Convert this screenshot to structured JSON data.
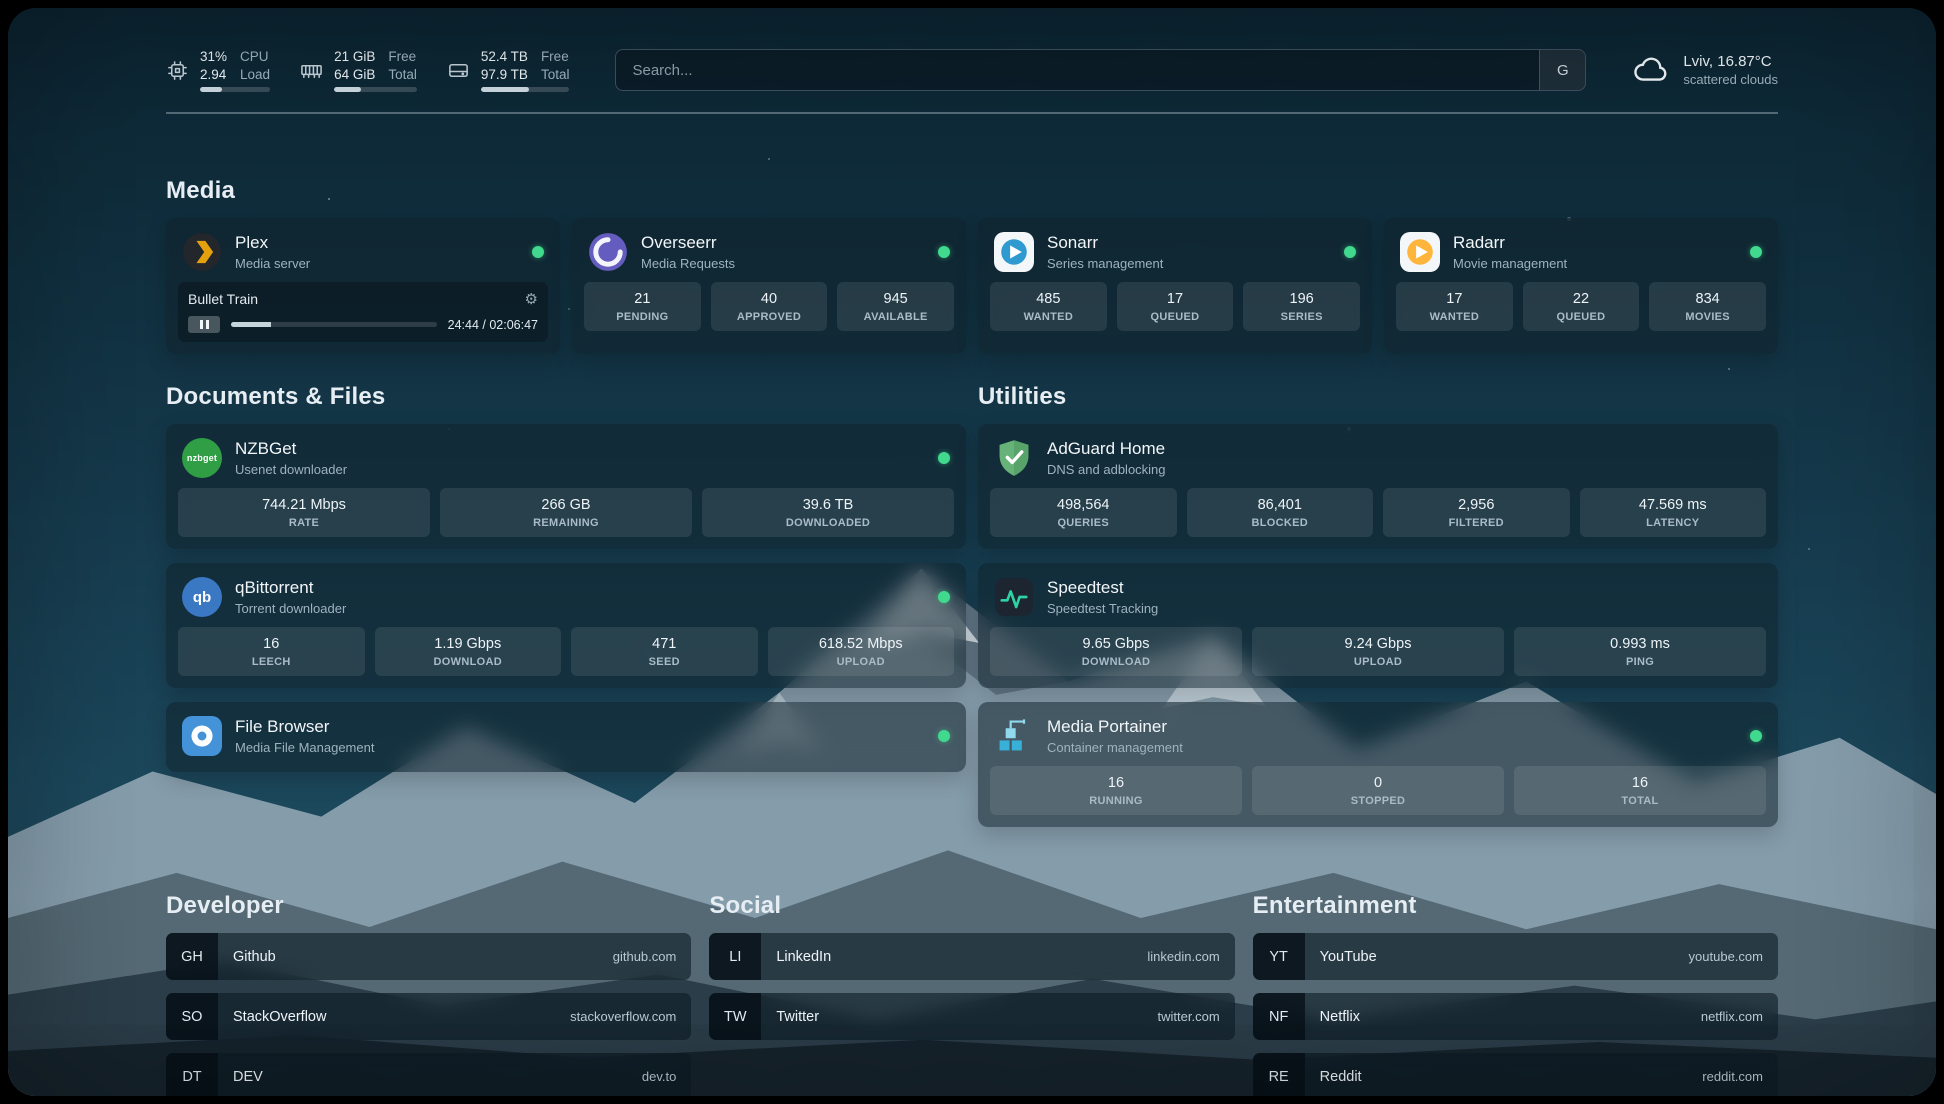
{
  "topbar": {
    "cpu": {
      "value1": "31%",
      "label1": "CPU",
      "value2": "2.94",
      "label2": "Load",
      "percent": 31
    },
    "memory": {
      "value1": "21 GiB",
      "label1": "Free",
      "value2": "64 GiB",
      "label2": "Total",
      "percent": 33
    },
    "disk": {
      "value1": "52.4 TB",
      "label1": "Free",
      "value2": "97.9 TB",
      "label2": "Total",
      "percent": 54
    },
    "search": {
      "placeholder": "Search...",
      "button_label": "G"
    },
    "weather": {
      "location": "Lviv, 16.87°C",
      "condition": "scattered clouds"
    }
  },
  "sections": {
    "media": {
      "title": "Media",
      "plex": {
        "name": "Plex",
        "description": "Media server",
        "now_playing": {
          "title": "Bullet Train",
          "time": "24:44 / 02:06:47",
          "progress_percent": 19.5
        }
      },
      "overseerr": {
        "name": "Overseerr",
        "description": "Media Requests",
        "stats": [
          {
            "value": "21",
            "label": "PENDING"
          },
          {
            "value": "40",
            "label": "APPROVED"
          },
          {
            "value": "945",
            "label": "AVAILABLE"
          }
        ]
      },
      "sonarr": {
        "name": "Sonarr",
        "description": "Series management",
        "stats": [
          {
            "value": "485",
            "label": "WANTED"
          },
          {
            "value": "17",
            "label": "QUEUED"
          },
          {
            "value": "196",
            "label": "SERIES"
          }
        ]
      },
      "radarr": {
        "name": "Radarr",
        "description": "Movie management",
        "stats": [
          {
            "value": "17",
            "label": "WANTED"
          },
          {
            "value": "22",
            "label": "QUEUED"
          },
          {
            "value": "834",
            "label": "MOVIES"
          }
        ]
      }
    },
    "documents": {
      "title": "Documents & Files",
      "nzbget": {
        "name": "NZBGet",
        "description": "Usenet downloader",
        "stats": [
          {
            "value": "744.21 Mbps",
            "label": "RATE"
          },
          {
            "value": "266 GB",
            "label": "REMAINING"
          },
          {
            "value": "39.6 TB",
            "label": "DOWNLOADED"
          }
        ]
      },
      "qbittorrent": {
        "name": "qBittorrent",
        "description": "Torrent downloader",
        "stats": [
          {
            "value": "16",
            "label": "LEECH"
          },
          {
            "value": "1.19 Gbps",
            "label": "DOWNLOAD"
          },
          {
            "value": "471",
            "label": "SEED"
          },
          {
            "value": "618.52 Mbps",
            "label": "UPLOAD"
          }
        ]
      },
      "filebrowser": {
        "name": "File Browser",
        "description": "Media File Management"
      }
    },
    "utilities": {
      "title": "Utilities",
      "adguard": {
        "name": "AdGuard Home",
        "description": "DNS and adblocking",
        "stats": [
          {
            "value": "498,564",
            "label": "QUERIES"
          },
          {
            "value": "86,401",
            "label": "BLOCKED"
          },
          {
            "value": "2,956",
            "label": "FILTERED"
          },
          {
            "value": "47.569 ms",
            "label": "LATENCY"
          }
        ]
      },
      "speedtest": {
        "name": "Speedtest",
        "description": "Speedtest Tracking",
        "stats": [
          {
            "value": "9.65 Gbps",
            "label": "DOWNLOAD"
          },
          {
            "value": "9.24 Gbps",
            "label": "UPLOAD"
          },
          {
            "value": "0.993 ms",
            "label": "PING"
          }
        ]
      },
      "portainer": {
        "name": "Media Portainer",
        "description": "Container management",
        "stats": [
          {
            "value": "16",
            "label": "RUNNING"
          },
          {
            "value": "0",
            "label": "STOPPED"
          },
          {
            "value": "16",
            "label": "TOTAL"
          }
        ]
      }
    },
    "bookmarks": {
      "developer": {
        "title": "Developer",
        "items": [
          {
            "abbr": "GH",
            "name": "Github",
            "url": "github.com"
          },
          {
            "abbr": "SO",
            "name": "StackOverflow",
            "url": "stackoverflow.com"
          },
          {
            "abbr": "DT",
            "name": "DEV",
            "url": "dev.to"
          }
        ]
      },
      "social": {
        "title": "Social",
        "items": [
          {
            "abbr": "LI",
            "name": "LinkedIn",
            "url": "linkedin.com"
          },
          {
            "abbr": "TW",
            "name": "Twitter",
            "url": "twitter.com"
          }
        ]
      },
      "entertainment": {
        "title": "Entertainment",
        "items": [
          {
            "abbr": "YT",
            "name": "YouTube",
            "url": "youtube.com"
          },
          {
            "abbr": "NF",
            "name": "Netflix",
            "url": "netflix.com"
          },
          {
            "abbr": "RE",
            "name": "Reddit",
            "url": "reddit.com"
          }
        ]
      }
    }
  },
  "colors": {
    "status_online": "#41d98d",
    "plex_accent": "#e5a00d"
  }
}
